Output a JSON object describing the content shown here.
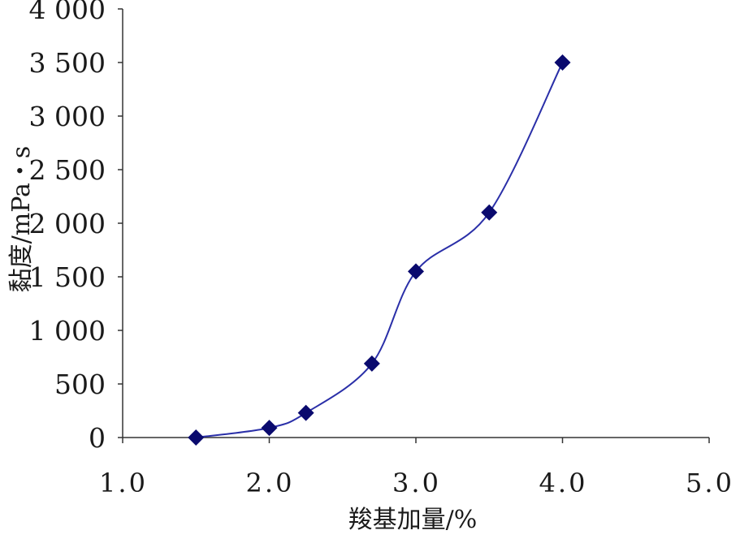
{
  "chart_data": {
    "type": "line",
    "title": "",
    "xlabel": "羧基加量/%",
    "ylabel": "黏度/mPa・s",
    "xlim": [
      1.0,
      5.0
    ],
    "ylim": [
      0,
      4000
    ],
    "x_ticks": [
      1.0,
      2.0,
      3.0,
      4.0,
      5.0
    ],
    "x_tick_labels": [
      "1.0",
      "2.0",
      "3.0",
      "4.0",
      "5.0"
    ],
    "y_ticks": [
      0,
      500,
      1000,
      1500,
      2000,
      2500,
      3000,
      3500,
      4000
    ],
    "y_tick_labels": [
      "0",
      "500",
      "1 000",
      "1 500",
      "2 000",
      "2 500",
      "3 000",
      "3 500",
      "4 000"
    ],
    "grid": false,
    "legend": "none",
    "line_color": "#2a2fa8",
    "marker_color": "#0a0a6e",
    "marker": "diamond",
    "series": [
      {
        "x": [
          1.5,
          2.0,
          2.25,
          2.7,
          3.0,
          3.5,
          4.0
        ],
        "y": [
          0,
          90,
          230,
          690,
          1550,
          2100,
          3500
        ]
      }
    ]
  }
}
